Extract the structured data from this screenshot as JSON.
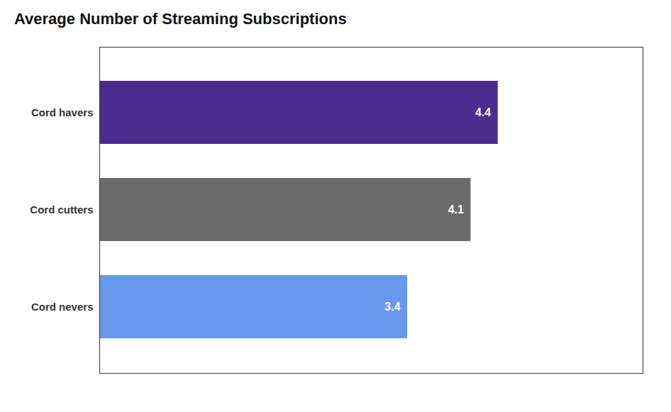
{
  "chart_data": {
    "type": "bar",
    "title": "Average Number of Streaming Subscriptions",
    "orientation": "horizontal",
    "categories": [
      "Cord havers",
      "Cord cutters",
      "Cord nevers"
    ],
    "values": [
      4.4,
      4.1,
      3.4
    ],
    "colors": [
      "#4B2D8F",
      "#6B6B6B",
      "#6699EE"
    ],
    "xlim": [
      0,
      6
    ],
    "data_labels": true,
    "tick_labels": "y",
    "grid": false
  }
}
